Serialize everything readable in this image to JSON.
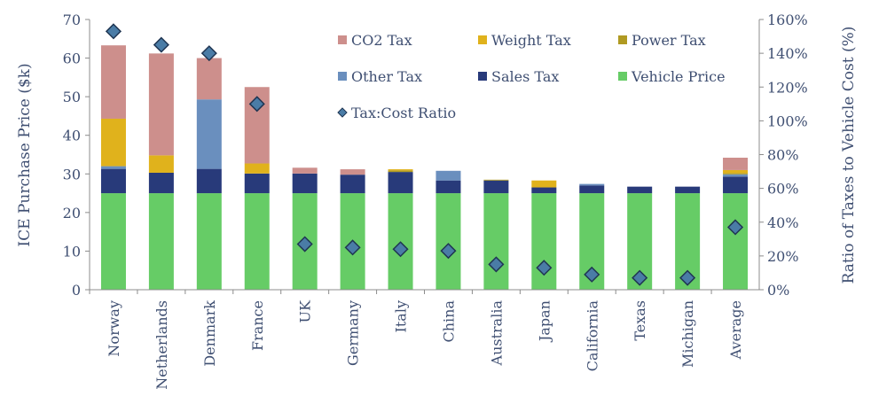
{
  "chart_data": {
    "type": "bar",
    "stacked": true,
    "categories": [
      "Norway",
      "Netherlands",
      "Denmark",
      "France",
      "UK",
      "Germany",
      "Italy",
      "China",
      "Australia",
      "Japan",
      "California",
      "Texas",
      "Michigan",
      "Average"
    ],
    "series": [
      {
        "name": "Vehicle Price",
        "color": "#66cc66",
        "values": [
          25,
          25,
          25,
          25,
          25,
          25,
          25,
          25,
          25,
          25,
          25,
          25,
          25,
          25
        ]
      },
      {
        "name": "Sales Tax",
        "color": "#283a7a",
        "values": [
          6.3,
          5.3,
          6.3,
          5.1,
          5.1,
          4.8,
          5.5,
          3.3,
          3.3,
          1.5,
          2.0,
          1.7,
          1.7,
          4.3
        ]
      },
      {
        "name": "Other Tax",
        "color": "#6a8fbe",
        "values": [
          0.7,
          0,
          18.0,
          0,
          0,
          0,
          0,
          2.5,
          0,
          0,
          0.4,
          0,
          0,
          0.6
        ]
      },
      {
        "name": "Power Tax",
        "color": "#b09a22",
        "values": [
          0,
          0,
          0,
          0,
          0,
          0,
          0.4,
          0,
          0.2,
          0,
          0,
          0,
          0,
          0.3
        ]
      },
      {
        "name": "Weight Tax",
        "color": "#e0b21c",
        "values": [
          12.3,
          4.5,
          0,
          2.6,
          0,
          0,
          0.3,
          0,
          0,
          1.8,
          0,
          0,
          0,
          0.8
        ]
      },
      {
        "name": "CO2 Tax",
        "color": "#cd8f8c",
        "values": [
          19.0,
          26.4,
          10.7,
          19.8,
          1.5,
          1.4,
          0,
          0,
          0,
          0,
          0,
          0,
          0,
          3.2
        ]
      }
    ],
    "ratio_series": {
      "name": "Tax:Cost Ratio",
      "values": [
        153,
        145,
        140,
        110,
        27,
        25,
        24,
        23,
        15,
        13,
        9,
        7,
        7,
        37
      ]
    },
    "xlabel": "",
    "ylabel": "ICE Purchase Price ($k)",
    "y2label": "Ratio of Taxes to Vehicle Cost (%)",
    "ylim": [
      0,
      70
    ],
    "y2lim": [
      0,
      160
    ],
    "yticks": [
      "0",
      "10",
      "20",
      "30",
      "40",
      "50",
      "60",
      "70"
    ],
    "y2ticks": [
      "0%",
      "20%",
      "40%",
      "60%",
      "80%",
      "100%",
      "120%",
      "140%",
      "160%"
    ],
    "legend": [
      {
        "label": "CO2 Tax",
        "color": "#cd8f8c",
        "kind": "square"
      },
      {
        "label": "Weight Tax",
        "color": "#e0b21c",
        "kind": "square"
      },
      {
        "label": "Power Tax",
        "color": "#b09a22",
        "kind": "square"
      },
      {
        "label": "Other Tax",
        "color": "#6a8fbe",
        "kind": "square"
      },
      {
        "label": "Sales Tax",
        "color": "#283a7a",
        "kind": "square"
      },
      {
        "label": "Vehicle Price",
        "color": "#66cc66",
        "kind": "square"
      },
      {
        "label": "Tax:Cost Ratio",
        "color": "#4a7ca6",
        "kind": "diamond"
      }
    ],
    "legend_position": "top-right",
    "grid": false
  }
}
